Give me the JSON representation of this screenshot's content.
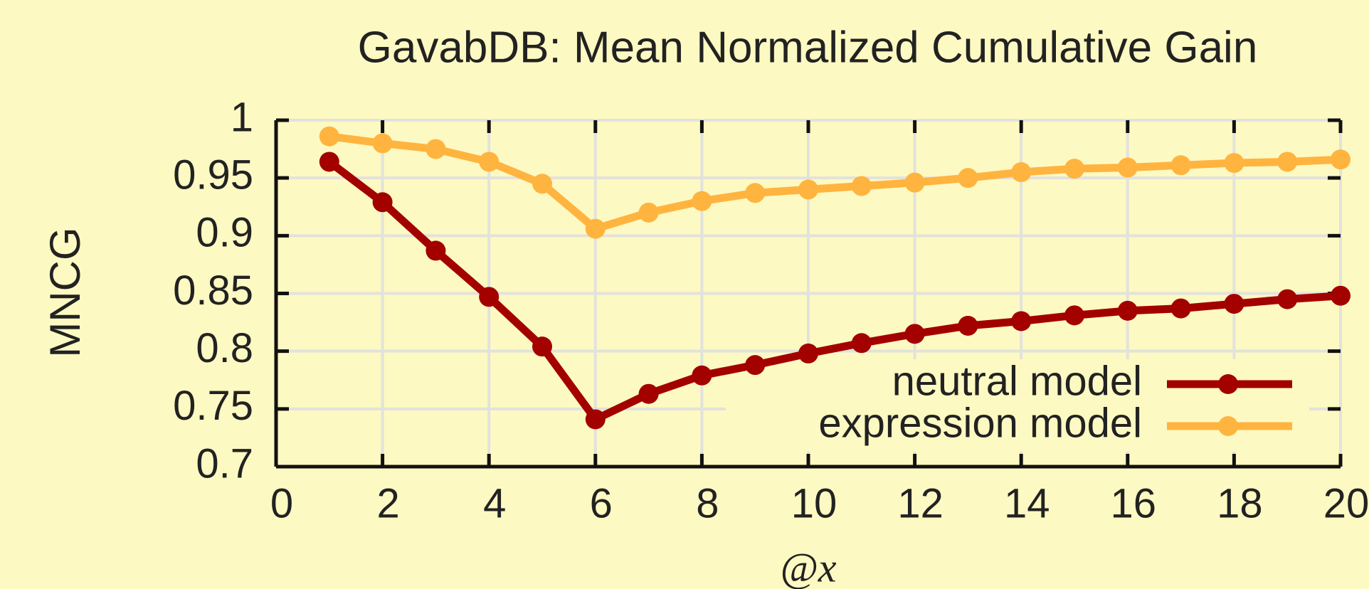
{
  "chart_data": {
    "type": "line",
    "title": "GavabDB: Mean Normalized Cumulative Gain",
    "x_label": "@x",
    "y_label": "MNCG",
    "x": [
      1,
      2,
      3,
      4,
      5,
      6,
      7,
      8,
      9,
      10,
      11,
      12,
      13,
      14,
      15,
      16,
      17,
      18,
      19,
      20
    ],
    "series": [
      {
        "name": "neutral model",
        "color": "#a30000",
        "values": [
          0.964,
          0.929,
          0.887,
          0.847,
          0.804,
          0.741,
          0.763,
          0.779,
          0.788,
          0.798,
          0.807,
          0.815,
          0.822,
          0.826,
          0.831,
          0.835,
          0.837,
          0.841,
          0.845,
          0.848
        ]
      },
      {
        "name": "expression model",
        "color": "#ffb43f",
        "values": [
          0.986,
          0.98,
          0.975,
          0.964,
          0.945,
          0.906,
          0.92,
          0.93,
          0.937,
          0.94,
          0.943,
          0.946,
          0.95,
          0.955,
          0.958,
          0.959,
          0.961,
          0.963,
          0.964,
          0.966
        ]
      }
    ],
    "xlim": [
      0,
      20
    ],
    "xticks": [
      0,
      2,
      4,
      6,
      8,
      10,
      12,
      14,
      16,
      18,
      20
    ],
    "ylim": [
      0.7,
      1
    ],
    "yticks": [
      0.7,
      0.75,
      0.8,
      0.85,
      0.9,
      0.95,
      1
    ],
    "grid": true,
    "legend": "lower right"
  }
}
